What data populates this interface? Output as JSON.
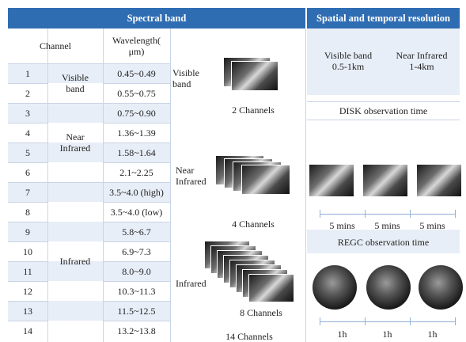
{
  "header": {
    "spectral_band": "Spectral band",
    "resolution": "Spatial and temporal resolution"
  },
  "table": {
    "columns": [
      "Channel",
      "Wavelength(\nμm)"
    ],
    "rows": [
      [
        "1",
        "0.45~0.49"
      ],
      [
        "2",
        "0.55~0.75"
      ],
      [
        "3",
        "0.75~0.90"
      ],
      [
        "4",
        "1.36~1.39"
      ],
      [
        "5",
        "1.58~1.64"
      ],
      [
        "6",
        "2.1~2.25"
      ],
      [
        "7",
        "3.5~4.0 (high)"
      ],
      [
        "8",
        "3.5~4.0 (low)"
      ],
      [
        "9",
        "5.8~6.7"
      ],
      [
        "10",
        "6.9~7.3"
      ],
      [
        "11",
        "8.0~9.0"
      ],
      [
        "12",
        "10.3~11.3"
      ],
      [
        "13",
        "11.5~12.5"
      ],
      [
        "14",
        "13.2~13.8"
      ]
    ],
    "groups": [
      "Visible\nband",
      "Near\nInfrared",
      "Infrared"
    ]
  },
  "images": {
    "visible_label": "Visible\nband",
    "visible_count": "2 Channels",
    "near_label": "Near\nInfrared",
    "near_count": "4 Channels",
    "infrared_label": "Infrared",
    "infrared_count": "8 Channels",
    "total": "14 Channels"
  },
  "resolution": {
    "visible": "Visible band\n0.5-1km",
    "near_infrared": "Near Infrared\n1-4km",
    "disk_title": "DISK observation time",
    "disk_intervals": [
      "5 mins",
      "5 mins",
      "5 mins"
    ],
    "regc_title": "REGC observation time",
    "regc_intervals": [
      "1h",
      "1h",
      "1h"
    ]
  }
}
